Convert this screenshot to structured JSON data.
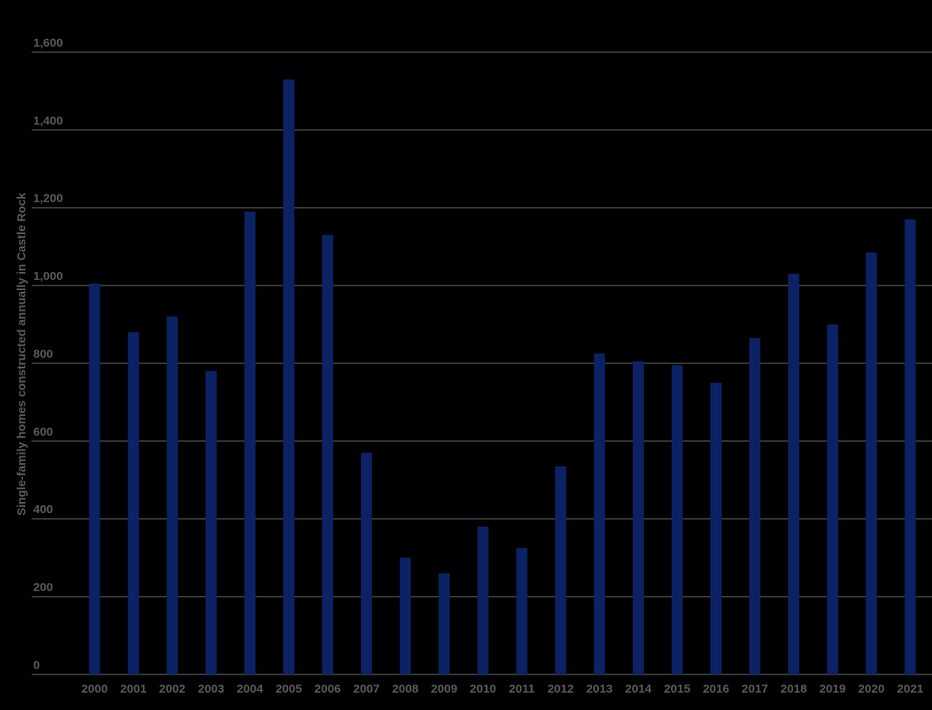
{
  "chart_data": {
    "type": "bar",
    "y_label": "Single-family homes constructed annually in Castle Rock",
    "categories": [
      "2000",
      "2001",
      "2002",
      "2003",
      "2004",
      "2005",
      "2006",
      "2007",
      "2008",
      "2009",
      "2010",
      "2011",
      "2012",
      "2013",
      "2014",
      "2015",
      "2016",
      "2017",
      "2018",
      "2019",
      "2020",
      "2021"
    ],
    "values": [
      1005,
      880,
      920,
      780,
      1190,
      1530,
      1130,
      570,
      300,
      260,
      380,
      325,
      535,
      825,
      805,
      795,
      750,
      865,
      1030,
      900,
      1085,
      1170
    ],
    "color": "#0b2265",
    "ylim": [
      0,
      1600
    ],
    "yticks": [
      0,
      200,
      400,
      600,
      800,
      {
        "value": 1000,
        "label": "1,000"
      },
      {
        "value": 1200,
        "label": "1,200"
      },
      {
        "value": 1400,
        "label": "1,400"
      },
      {
        "value": 1600,
        "label": "1,600"
      }
    ],
    "grid": true
  }
}
